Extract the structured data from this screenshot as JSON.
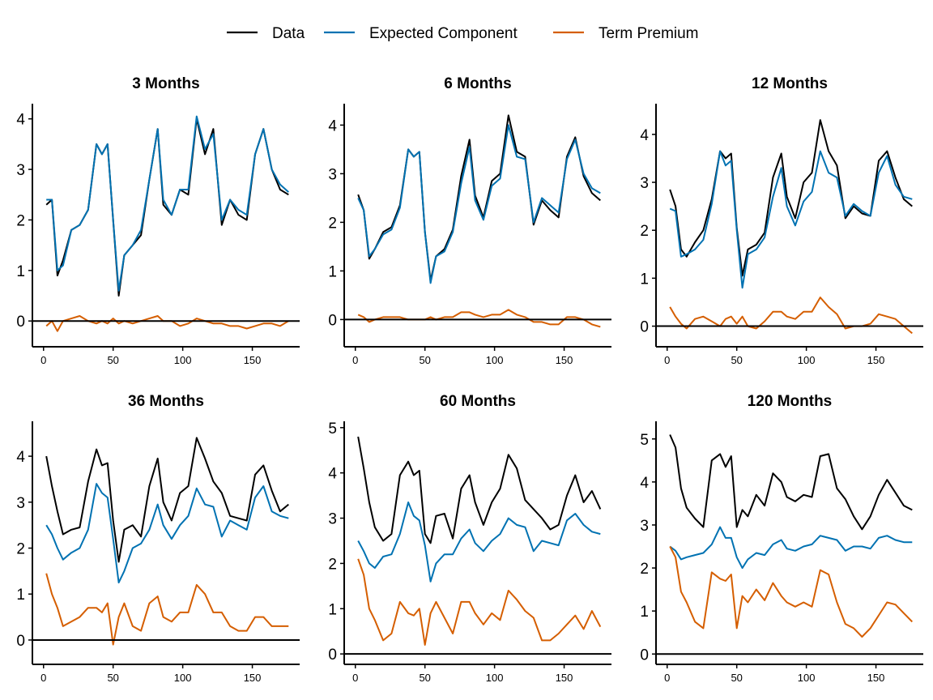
{
  "legend": {
    "position": "top",
    "items": [
      {
        "label": "Data",
        "color": "#000000"
      },
      {
        "label": "Expected Component",
        "color": "#0072B2"
      },
      {
        "label": "Term Premium",
        "color": "#D55E00"
      }
    ]
  },
  "chart_data": [
    {
      "type": "line",
      "title": "3 Months",
      "xlim": [
        -8,
        184
      ],
      "ylim": [
        -0.51,
        4.3
      ],
      "xticks": [
        0,
        50,
        100,
        150
      ],
      "yticks": [
        0,
        1,
        2,
        3,
        4
      ],
      "hline": 0,
      "grid": false,
      "x": [
        2,
        6,
        10,
        14,
        20,
        26,
        32,
        38,
        42,
        46,
        50,
        54,
        58,
        64,
        70,
        76,
        82,
        86,
        92,
        98,
        104,
        110,
        116,
        122,
        128,
        134,
        140,
        146,
        152,
        158,
        164,
        170,
        176
      ],
      "series": [
        {
          "name": "Data",
          "values": [
            2.3,
            2.4,
            0.9,
            1.2,
            1.8,
            1.9,
            2.2,
            3.5,
            3.3,
            3.5,
            2.0,
            0.5,
            1.3,
            1.5,
            1.7,
            2.8,
            3.8,
            2.3,
            2.1,
            2.6,
            2.5,
            4.0,
            3.3,
            3.8,
            1.9,
            2.4,
            2.1,
            2.0,
            3.3,
            3.8,
            3.0,
            2.6,
            2.5
          ]
        },
        {
          "name": "Expected Component",
          "values": [
            2.4,
            2.4,
            1.0,
            1.1,
            1.8,
            1.9,
            2.2,
            3.5,
            3.3,
            3.5,
            2.0,
            0.6,
            1.3,
            1.5,
            1.8,
            2.8,
            3.8,
            2.4,
            2.1,
            2.6,
            2.6,
            4.05,
            3.4,
            3.7,
            2.0,
            2.4,
            2.2,
            2.1,
            3.3,
            3.8,
            3.0,
            2.7,
            2.55
          ]
        },
        {
          "name": "Term Premium",
          "values": [
            -0.1,
            0.0,
            -0.2,
            0.0,
            0.05,
            0.1,
            0.0,
            -0.05,
            0.0,
            -0.05,
            0.05,
            -0.05,
            0.0,
            -0.05,
            0.0,
            0.05,
            0.1,
            0.0,
            0.0,
            -0.1,
            -0.05,
            0.05,
            0.0,
            -0.05,
            -0.05,
            -0.1,
            -0.1,
            -0.15,
            -0.1,
            -0.05,
            -0.05,
            -0.1,
            0.0
          ]
        }
      ]
    },
    {
      "type": "line",
      "title": "6 Months",
      "xlim": [
        -8,
        184
      ],
      "ylim": [
        -0.56,
        4.44
      ],
      "xticks": [
        0,
        50,
        100,
        150
      ],
      "yticks": [
        0,
        1,
        2,
        3,
        4
      ],
      "hline": 0,
      "grid": false,
      "x": [
        2,
        6,
        10,
        14,
        20,
        26,
        32,
        38,
        42,
        46,
        50,
        54,
        58,
        64,
        70,
        76,
        82,
        86,
        92,
        98,
        104,
        110,
        116,
        122,
        128,
        134,
        140,
        146,
        152,
        158,
        164,
        170,
        176
      ],
      "series": [
        {
          "name": "Data",
          "values": [
            2.57,
            2.25,
            1.25,
            1.45,
            1.8,
            1.9,
            2.35,
            3.5,
            3.35,
            3.45,
            1.8,
            0.8,
            1.3,
            1.45,
            1.85,
            2.95,
            3.7,
            2.55,
            2.1,
            2.85,
            3.0,
            4.2,
            3.45,
            3.35,
            1.95,
            2.45,
            2.25,
            2.1,
            3.35,
            3.75,
            2.95,
            2.6,
            2.45
          ]
        },
        {
          "name": "Expected Component",
          "values": [
            2.5,
            2.25,
            1.3,
            1.45,
            1.75,
            1.85,
            2.3,
            3.5,
            3.35,
            3.45,
            1.8,
            0.75,
            1.3,
            1.4,
            1.8,
            2.8,
            3.55,
            2.45,
            2.05,
            2.75,
            2.9,
            4.0,
            3.35,
            3.3,
            2.0,
            2.5,
            2.35,
            2.2,
            3.3,
            3.7,
            3.0,
            2.7,
            2.6
          ]
        },
        {
          "name": "Term Premium",
          "values": [
            0.1,
            0.05,
            -0.05,
            0.0,
            0.05,
            0.05,
            0.05,
            0.0,
            0.0,
            0.0,
            0.0,
            0.05,
            0.0,
            0.05,
            0.05,
            0.15,
            0.15,
            0.1,
            0.05,
            0.1,
            0.1,
            0.2,
            0.1,
            0.05,
            -0.05,
            -0.05,
            -0.1,
            -0.1,
            0.05,
            0.05,
            0.0,
            -0.1,
            -0.15
          ]
        }
      ]
    },
    {
      "type": "line",
      "title": "12 Months",
      "xlim": [
        -8,
        184
      ],
      "ylim": [
        -0.43,
        4.64
      ],
      "xticks": [
        0,
        50,
        100,
        150
      ],
      "yticks": [
        0,
        1,
        2,
        3,
        4
      ],
      "hline": 0,
      "grid": false,
      "x": [
        2,
        6,
        10,
        14,
        20,
        26,
        32,
        38,
        42,
        46,
        50,
        54,
        58,
        64,
        70,
        76,
        82,
        86,
        92,
        98,
        104,
        110,
        116,
        122,
        128,
        134,
        140,
        146,
        152,
        158,
        164,
        170,
        176
      ],
      "series": [
        {
          "name": "Data",
          "values": [
            2.85,
            2.5,
            1.6,
            1.45,
            1.75,
            2.0,
            2.65,
            3.65,
            3.5,
            3.6,
            2.05,
            1.05,
            1.6,
            1.7,
            1.95,
            3.1,
            3.6,
            2.7,
            2.25,
            3.0,
            3.2,
            4.3,
            3.65,
            3.35,
            2.25,
            2.5,
            2.35,
            2.3,
            3.45,
            3.65,
            3.1,
            2.65,
            2.5
          ]
        },
        {
          "name": "Expected Component",
          "values": [
            2.45,
            2.4,
            1.45,
            1.5,
            1.6,
            1.8,
            2.55,
            3.65,
            3.35,
            3.45,
            2.0,
            0.8,
            1.5,
            1.6,
            1.85,
            2.7,
            3.3,
            2.5,
            2.1,
            2.6,
            2.8,
            3.65,
            3.2,
            3.1,
            2.3,
            2.55,
            2.4,
            2.3,
            3.2,
            3.55,
            2.95,
            2.7,
            2.65
          ]
        },
        {
          "name": "Term Premium",
          "values": [
            0.4,
            0.2,
            0.05,
            -0.05,
            0.15,
            0.2,
            0.1,
            0.0,
            0.15,
            0.2,
            0.05,
            0.2,
            0.0,
            -0.05,
            0.1,
            0.3,
            0.3,
            0.2,
            0.15,
            0.3,
            0.3,
            0.6,
            0.4,
            0.25,
            -0.05,
            0.0,
            0.0,
            0.05,
            0.25,
            0.2,
            0.15,
            0.0,
            -0.15
          ]
        }
      ]
    },
    {
      "type": "line",
      "title": "36 Months",
      "xlim": [
        -8,
        184
      ],
      "ylim": [
        -0.53,
        4.76
      ],
      "xticks": [
        0,
        50,
        100,
        150
      ],
      "yticks": [
        0,
        1,
        2,
        3,
        4
      ],
      "hline": 0,
      "grid": false,
      "x": [
        2,
        6,
        10,
        14,
        20,
        26,
        32,
        38,
        42,
        46,
        50,
        54,
        58,
        64,
        70,
        76,
        82,
        86,
        92,
        98,
        104,
        110,
        116,
        122,
        128,
        134,
        140,
        146,
        152,
        158,
        164,
        170,
        176
      ],
      "series": [
        {
          "name": "Data",
          "values": [
            4.0,
            3.35,
            2.8,
            2.3,
            2.4,
            2.45,
            3.45,
            4.15,
            3.8,
            3.85,
            2.6,
            1.7,
            2.4,
            2.5,
            2.25,
            3.35,
            3.95,
            3.0,
            2.6,
            3.2,
            3.35,
            4.4,
            3.95,
            3.45,
            3.2,
            2.7,
            2.65,
            2.6,
            3.6,
            3.8,
            3.25,
            2.8,
            2.95
          ]
        },
        {
          "name": "Expected Component",
          "values": [
            2.5,
            2.3,
            2.0,
            1.75,
            1.9,
            2.0,
            2.4,
            3.4,
            3.2,
            3.1,
            2.2,
            1.25,
            1.5,
            2.0,
            2.1,
            2.4,
            2.95,
            2.5,
            2.2,
            2.5,
            2.7,
            3.3,
            2.95,
            2.9,
            2.25,
            2.6,
            2.5,
            2.4,
            3.1,
            3.35,
            2.8,
            2.7,
            2.65
          ]
        },
        {
          "name": "Term Premium",
          "values": [
            1.45,
            1.0,
            0.7,
            0.3,
            0.4,
            0.5,
            0.7,
            0.7,
            0.6,
            0.8,
            -0.1,
            0.5,
            0.8,
            0.3,
            0.2,
            0.8,
            0.95,
            0.5,
            0.4,
            0.6,
            0.6,
            1.2,
            1.0,
            0.6,
            0.6,
            0.3,
            0.2,
            0.2,
            0.5,
            0.5,
            0.3,
            0.3,
            0.3
          ]
        }
      ]
    },
    {
      "type": "line",
      "title": "60 Months",
      "xlim": [
        -8,
        184
      ],
      "ylim": [
        -0.23,
        5.14
      ],
      "xticks": [
        0,
        50,
        100,
        150
      ],
      "yticks": [
        0,
        1,
        2,
        3,
        4,
        5
      ],
      "hline": 0,
      "grid": false,
      "x": [
        2,
        6,
        10,
        14,
        20,
        26,
        32,
        38,
        42,
        46,
        50,
        54,
        58,
        64,
        70,
        76,
        82,
        86,
        92,
        98,
        104,
        110,
        116,
        122,
        128,
        134,
        140,
        146,
        152,
        158,
        164,
        170,
        176
      ],
      "series": [
        {
          "name": "Data",
          "values": [
            4.8,
            4.1,
            3.35,
            2.8,
            2.5,
            2.65,
            3.95,
            4.25,
            3.95,
            4.05,
            2.65,
            2.45,
            3.05,
            3.1,
            2.55,
            3.65,
            3.95,
            3.35,
            2.85,
            3.35,
            3.65,
            4.4,
            4.1,
            3.4,
            3.2,
            3.0,
            2.75,
            2.85,
            3.5,
            3.95,
            3.35,
            3.6,
            3.2
          ]
        },
        {
          "name": "Expected Component",
          "values": [
            2.5,
            2.27,
            2.0,
            1.9,
            2.15,
            2.2,
            2.65,
            3.35,
            3.05,
            2.95,
            2.4,
            1.6,
            2.0,
            2.2,
            2.2,
            2.55,
            2.75,
            2.45,
            2.27,
            2.5,
            2.65,
            3.0,
            2.85,
            2.8,
            2.27,
            2.5,
            2.45,
            2.4,
            2.95,
            3.1,
            2.85,
            2.7,
            2.65
          ]
        },
        {
          "name": "Term Premium",
          "values": [
            2.1,
            1.75,
            1.0,
            0.75,
            0.3,
            0.45,
            1.15,
            0.9,
            0.85,
            1.0,
            0.2,
            0.9,
            1.15,
            0.8,
            0.45,
            1.15,
            1.15,
            0.9,
            0.65,
            0.9,
            0.75,
            1.4,
            1.2,
            0.95,
            0.8,
            0.3,
            0.3,
            0.45,
            0.65,
            0.85,
            0.55,
            0.95,
            0.6
          ]
        }
      ]
    },
    {
      "type": "line",
      "title": "120 Months",
      "xlim": [
        -8,
        184
      ],
      "ylim": [
        -0.24,
        5.41
      ],
      "xticks": [
        0,
        50,
        100,
        150
      ],
      "yticks": [
        0,
        1,
        2,
        3,
        4,
        5
      ],
      "hline": 0,
      "grid": false,
      "x": [
        2,
        6,
        10,
        14,
        20,
        26,
        32,
        38,
        42,
        46,
        50,
        54,
        58,
        64,
        70,
        76,
        82,
        86,
        92,
        98,
        104,
        110,
        116,
        122,
        128,
        134,
        140,
        146,
        152,
        158,
        164,
        170,
        176
      ],
      "series": [
        {
          "name": "Data",
          "values": [
            5.1,
            4.8,
            3.85,
            3.4,
            3.15,
            2.95,
            4.5,
            4.65,
            4.35,
            4.6,
            2.95,
            3.35,
            3.2,
            3.7,
            3.45,
            4.2,
            4.0,
            3.65,
            3.55,
            3.7,
            3.65,
            4.6,
            4.65,
            3.85,
            3.6,
            3.2,
            2.9,
            3.2,
            3.7,
            4.05,
            3.75,
            3.45,
            3.35
          ]
        },
        {
          "name": "Expected Component",
          "values": [
            2.5,
            2.4,
            2.2,
            2.25,
            2.3,
            2.35,
            2.55,
            2.95,
            2.7,
            2.7,
            2.25,
            2.0,
            2.2,
            2.35,
            2.3,
            2.55,
            2.65,
            2.45,
            2.4,
            2.5,
            2.55,
            2.75,
            2.7,
            2.65,
            2.4,
            2.5,
            2.5,
            2.45,
            2.7,
            2.75,
            2.65,
            2.6,
            2.6
          ]
        },
        {
          "name": "Term Premium",
          "values": [
            2.5,
            2.25,
            1.45,
            1.2,
            0.75,
            0.6,
            1.9,
            1.75,
            1.7,
            1.85,
            0.6,
            1.35,
            1.2,
            1.5,
            1.25,
            1.65,
            1.35,
            1.2,
            1.1,
            1.2,
            1.1,
            1.95,
            1.85,
            1.2,
            0.7,
            0.6,
            0.4,
            0.6,
            0.9,
            1.2,
            1.15,
            0.95,
            0.75
          ]
        }
      ]
    }
  ]
}
